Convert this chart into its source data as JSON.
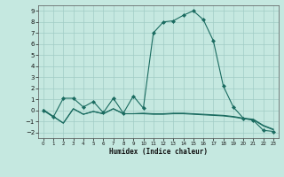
{
  "xlabel": "Humidex (Indice chaleur)",
  "background_color": "#c5e8e0",
  "grid_color": "#a0ccc5",
  "line_color": "#1a6b60",
  "xlim": [
    -0.5,
    23.5
  ],
  "ylim": [
    -2.5,
    9.5
  ],
  "xticks": [
    0,
    1,
    2,
    3,
    4,
    5,
    6,
    7,
    8,
    9,
    10,
    11,
    12,
    13,
    14,
    15,
    16,
    17,
    18,
    19,
    20,
    21,
    22,
    23
  ],
  "yticks": [
    -2,
    -1,
    0,
    1,
    2,
    3,
    4,
    5,
    6,
    7,
    8,
    9
  ],
  "series1_x": [
    0,
    1,
    2,
    3,
    4,
    5,
    6,
    7,
    8,
    9,
    10,
    11,
    12,
    13,
    14,
    15,
    16,
    17,
    18,
    19,
    20,
    21,
    22,
    23
  ],
  "series1_y": [
    0.0,
    -0.6,
    1.1,
    1.1,
    0.3,
    0.8,
    -0.2,
    1.1,
    -0.25,
    1.3,
    0.2,
    7.0,
    8.0,
    8.1,
    8.6,
    9.0,
    8.2,
    6.3,
    2.2,
    0.3,
    -0.7,
    -0.9,
    -1.8,
    -1.9
  ],
  "series2_x": [
    0,
    1,
    2,
    3,
    4,
    5,
    6,
    7,
    8,
    9,
    10,
    11,
    12,
    13,
    14,
    15,
    16,
    17,
    18,
    19,
    20,
    21,
    22,
    23
  ],
  "series2_y": [
    0.05,
    -0.55,
    -1.15,
    0.15,
    -0.35,
    -0.1,
    -0.3,
    0.15,
    -0.3,
    -0.3,
    -0.3,
    -0.35,
    -0.35,
    -0.3,
    -0.3,
    -0.35,
    -0.4,
    -0.45,
    -0.5,
    -0.6,
    -0.75,
    -0.85,
    -1.4,
    -1.75
  ],
  "series3_x": [
    0,
    1,
    2,
    3,
    4,
    5,
    6,
    7,
    8,
    9,
    10,
    11,
    12,
    13,
    14,
    15,
    16,
    17,
    18,
    19,
    20,
    21,
    22,
    23
  ],
  "series3_y": [
    0.05,
    -0.55,
    -1.15,
    0.15,
    -0.35,
    -0.1,
    -0.3,
    0.15,
    -0.3,
    -0.3,
    -0.25,
    -0.3,
    -0.3,
    -0.25,
    -0.25,
    -0.3,
    -0.35,
    -0.4,
    -0.45,
    -0.55,
    -0.7,
    -0.8,
    -1.35,
    -1.7
  ]
}
